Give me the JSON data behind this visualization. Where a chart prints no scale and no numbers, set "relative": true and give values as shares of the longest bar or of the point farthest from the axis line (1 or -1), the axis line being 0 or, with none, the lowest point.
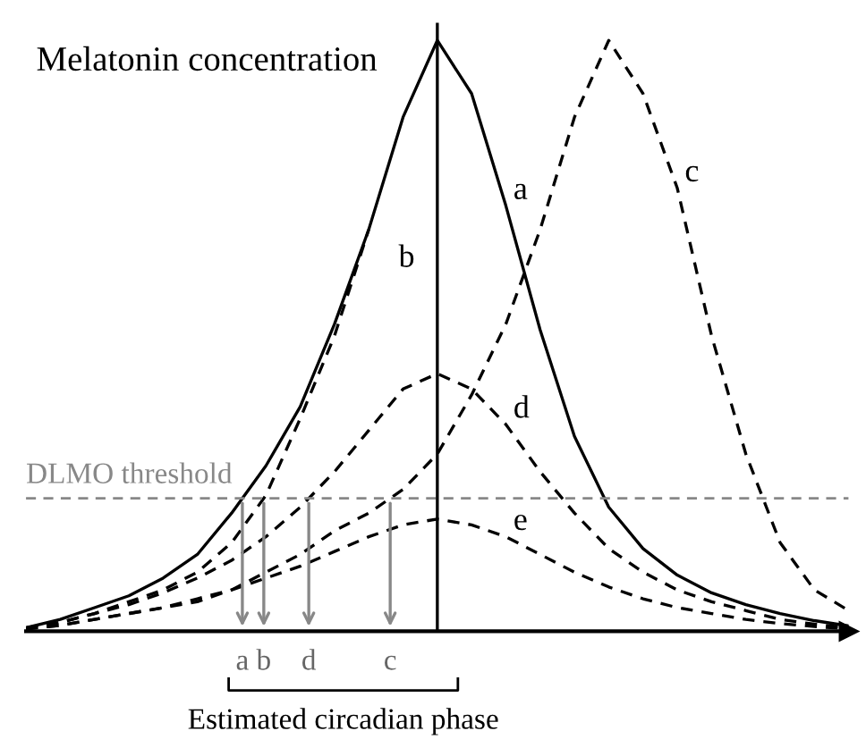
{
  "chart_data": {
    "type": "line",
    "title": "Melatonin concentration",
    "relative": true,
    "categories": [
      null,
      null,
      null,
      null,
      null,
      null,
      null,
      null,
      null,
      null,
      null,
      null,
      null,
      null,
      null,
      null,
      null,
      null,
      null,
      null,
      null,
      null,
      null,
      null,
      null
    ],
    "series": [
      {
        "name": "a",
        "color": "#000000",
        "line_style": "solid",
        "values": [
          0.006,
          0.02,
          0.04,
          0.06,
          0.09,
          0.13,
          0.2,
          0.28,
          0.38,
          0.52,
          0.68,
          0.87,
          1.0,
          0.91,
          0.72,
          0.51,
          0.33,
          0.21,
          0.14,
          0.095,
          0.065,
          0.045,
          0.03,
          0.018,
          0.009
        ]
      },
      {
        "name": "b",
        "color": "#000000",
        "line_style": "dashed",
        "values": [
          0.006,
          0.015,
          0.03,
          0.05,
          0.07,
          0.1,
          0.15,
          0.23,
          0.36,
          0.5,
          0.68,
          null,
          null,
          null,
          null,
          null,
          null,
          null,
          null,
          null,
          null,
          null,
          null,
          null,
          null
        ]
      },
      {
        "name": "c",
        "color": "#000000",
        "line_style": "dashed",
        "values": [
          0.004,
          0.01,
          0.02,
          0.03,
          0.04,
          0.05,
          0.07,
          0.1,
          0.13,
          0.17,
          0.2,
          0.24,
          0.3,
          0.4,
          0.52,
          0.68,
          0.87,
          1.0,
          0.91,
          0.75,
          0.5,
          0.3,
          0.15,
          0.07,
          0.035
        ]
      },
      {
        "name": "d",
        "color": "#000000",
        "line_style": "dashed",
        "values": [
          0.005,
          0.015,
          0.03,
          0.045,
          0.065,
          0.09,
          0.12,
          0.16,
          0.21,
          0.27,
          0.34,
          0.41,
          0.436,
          0.41,
          0.35,
          0.27,
          0.2,
          0.14,
          0.1,
          0.07,
          0.05,
          0.035,
          0.02,
          0.012,
          0.006
        ]
      },
      {
        "name": "e",
        "color": "#000000",
        "line_style": "dashed",
        "values": [
          0.004,
          0.01,
          0.02,
          0.03,
          0.04,
          0.055,
          0.07,
          0.09,
          0.11,
          0.135,
          0.16,
          0.18,
          0.19,
          0.18,
          0.16,
          0.13,
          0.1,
          0.075,
          0.055,
          0.04,
          0.03,
          0.02,
          0.013,
          0.008,
          0.004
        ]
      }
    ],
    "ref_lines": [
      {
        "axis": "y",
        "value": 0.225,
        "label": "DLMO threshold",
        "color": "#888888",
        "line_style": "dashed"
      }
    ],
    "annotations": [
      "a",
      "b",
      "d",
      "c",
      "Estimated circadian phase"
    ],
    "grid": false,
    "marker": "none"
  }
}
